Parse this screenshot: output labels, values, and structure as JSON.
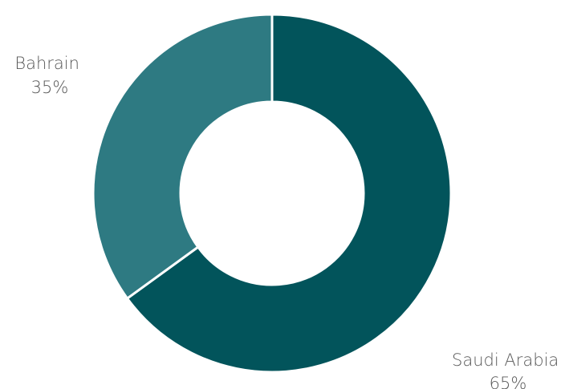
{
  "chart_data": {
    "type": "pie",
    "variant": "donut",
    "title": "",
    "categories": [
      "Saudi Arabia",
      "Bahrain"
    ],
    "values": [
      65,
      35
    ],
    "value_labels": [
      "65%",
      "35%"
    ],
    "colors": [
      "#02545b",
      "#2e7a82"
    ],
    "start_angle_deg": 0,
    "direction": "clockwise",
    "legend": "none",
    "labels_position": "outside"
  }
}
